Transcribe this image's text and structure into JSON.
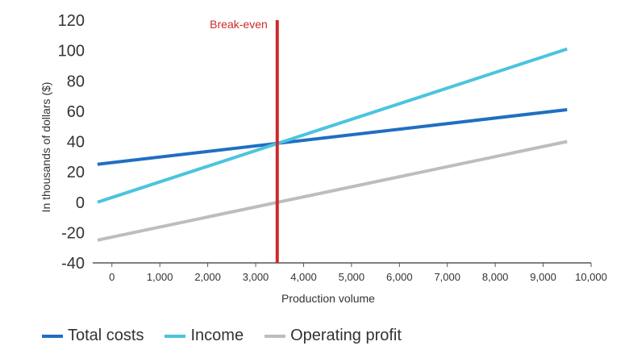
{
  "chart_data": {
    "type": "line",
    "title": "",
    "xlabel": "Production volume",
    "ylabel": "In thousands of dollars ($)",
    "xlim": [
      -400,
      10000
    ],
    "ylim": [
      -40,
      120
    ],
    "x_ticks": [
      0,
      1000,
      2000,
      3000,
      4000,
      5000,
      6000,
      7000,
      8000,
      9000,
      10000
    ],
    "x_tick_labels": [
      "0",
      "1,000",
      "2,000",
      "3,000",
      "4,000",
      "5,000",
      "6,000",
      "7,000",
      "8,000",
      "9,000",
      "10,000"
    ],
    "y_ticks": [
      -40,
      -20,
      0,
      20,
      40,
      60,
      80,
      100,
      120
    ],
    "y_tick_labels": [
      "-40",
      "-20",
      "0",
      "20",
      "40",
      "60",
      "80",
      "100",
      "120"
    ],
    "series": [
      {
        "name": "Total costs",
        "color": "#1f6fc1",
        "x": [
          -300,
          9500
        ],
        "y": [
          25,
          61
        ]
      },
      {
        "name": "Income",
        "color": "#4bc4de",
        "x": [
          -300,
          9500
        ],
        "y": [
          0,
          101
        ]
      },
      {
        "name": "Operating profit",
        "color": "#bdbdbd",
        "x": [
          -300,
          9500
        ],
        "y": [
          -25,
          40
        ]
      }
    ],
    "annotations": [
      {
        "type": "vertical-line",
        "label": "Break-even",
        "x": 3450,
        "color": "#cc2a2a"
      }
    ],
    "grid": false,
    "legend_position": "bottom-left"
  }
}
